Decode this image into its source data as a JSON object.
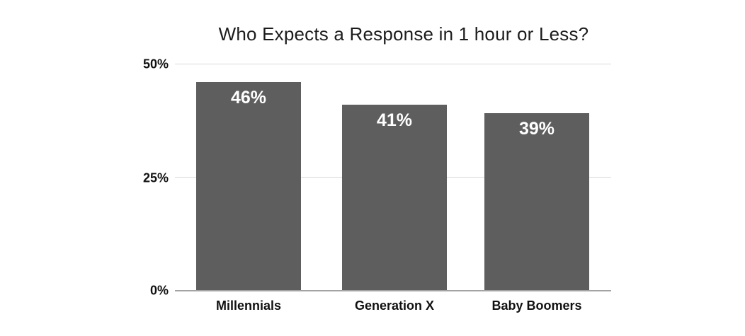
{
  "chart_data": {
    "type": "bar",
    "title": "Who Expects a Response in 1 hour or Less?",
    "categories": [
      "Millennials",
      "Generation X",
      "Baby Boomers"
    ],
    "values": [
      46,
      41,
      39
    ],
    "value_labels": [
      "46%",
      "41%",
      "39%"
    ],
    "xlabel": "",
    "ylabel": "",
    "ylim": [
      0,
      50
    ],
    "y_ticks": [
      {
        "value": 0,
        "label": "0%"
      },
      {
        "value": 25,
        "label": "25%"
      },
      {
        "value": 50,
        "label": "50%"
      }
    ],
    "grid": "horizontal-on",
    "legend": "none",
    "colors": {
      "bar": "#5e5e5e",
      "value_label": "#ffffff",
      "gridline": "#d9d9d9",
      "axis_baseline": "#a3a3a3",
      "title_text": "#1c1c1c",
      "tick_text": "#111111",
      "background": "#ffffff"
    }
  }
}
